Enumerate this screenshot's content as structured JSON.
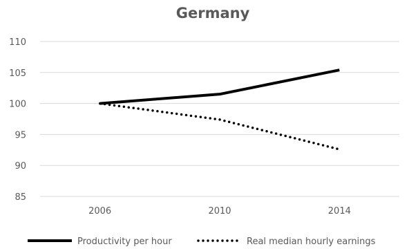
{
  "chart_data": {
    "type": "line",
    "title": "Germany",
    "xlabel": "",
    "ylabel": "",
    "categories": [
      "2006",
      "2010",
      "2014"
    ],
    "y_ticks": [
      "85",
      "90",
      "95",
      "100",
      "105",
      "110"
    ],
    "ylim": [
      85,
      110
    ],
    "grid": "horizontal",
    "legend_position": "bottom",
    "series": [
      {
        "name": "Productivity per hour",
        "values": [
          100,
          101.5,
          105.4
        ],
        "style": "solid",
        "color": "#000000"
      },
      {
        "name": "Real median hourly earnings",
        "values": [
          100,
          97.4,
          92.6
        ],
        "style": "dotted",
        "color": "#000000"
      }
    ]
  }
}
